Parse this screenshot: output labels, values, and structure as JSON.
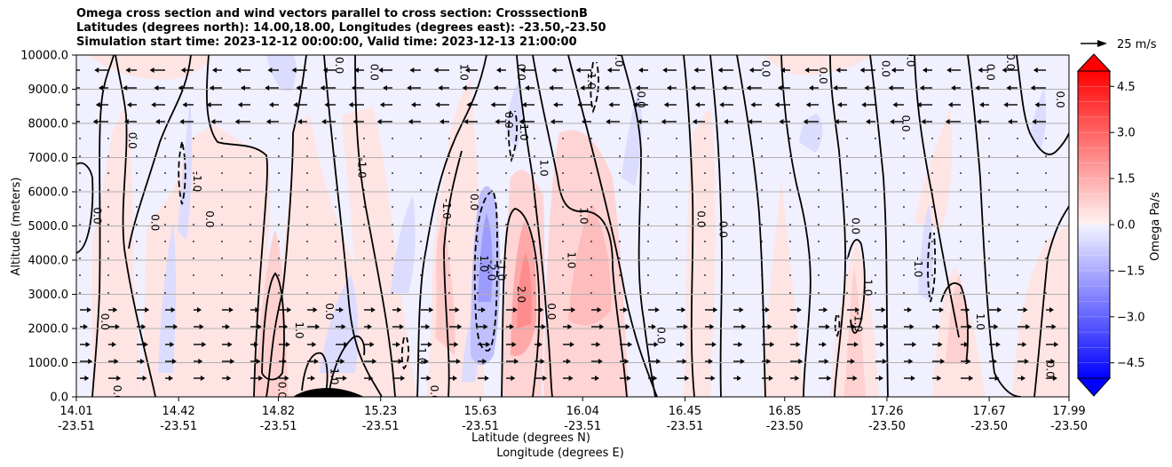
{
  "chart_data": {
    "type": "heatmap",
    "title_lines": [
      "Omega cross section and wind vectors parallel to cross section: CrosssectionB",
      "Latitudes (degrees north): 14.00,18.00, Longitudes (degrees east): -23.50,-23.50",
      "Simulation start time: 2023-12-12 00:00:00, Valid time: 2023-12-13 21:00:00"
    ],
    "ylabel": "Altitude (meters)",
    "xlabel_lat": "Latitude (degrees N)",
    "xlabel_lon": "Longitude (degrees E)",
    "ylim": [
      0,
      10000
    ],
    "y_ticks": [
      "0.0",
      "1000.0",
      "2000.0",
      "3000.0",
      "4000.0",
      "5000.0",
      "6000.0",
      "7000.0",
      "8000.0",
      "9000.0",
      "10000.0"
    ],
    "x_ticks": [
      {
        "lat": "14.01",
        "lon": "-23.51"
      },
      {
        "lat": "14.42",
        "lon": "-23.51"
      },
      {
        "lat": "14.82",
        "lon": "-23.51"
      },
      {
        "lat": "15.23",
        "lon": "-23.51"
      },
      {
        "lat": "15.63",
        "lon": "-23.51"
      },
      {
        "lat": "16.04",
        "lon": "-23.51"
      },
      {
        "lat": "16.45",
        "lon": "-23.51"
      },
      {
        "lat": "16.85",
        "lon": "-23.50"
      },
      {
        "lat": "17.26",
        "lon": "-23.50"
      },
      {
        "lat": "17.67",
        "lon": "-23.50"
      },
      {
        "lat": "17.99",
        "lon": "-23.50"
      }
    ],
    "grid": "horizontal",
    "colorbar": {
      "label": "Omega Pa/s",
      "range": [
        -5,
        5
      ],
      "tick_labels": [
        "4.5",
        "3.0",
        "1.5",
        "0.0",
        "−1.5",
        "−3.0",
        "−4.5"
      ],
      "tick_values": [
        4.5,
        3.0,
        1.5,
        0.0,
        -1.5,
        -3.0,
        -4.5
      ],
      "extend": "both"
    },
    "quiver_key": "25 m/s",
    "contour_labels": [
      {
        "text": "0.0",
        "lat": 14.08,
        "alt": 5300
      },
      {
        "text": "0.0",
        "lat": 14.11,
        "alt": 2200
      },
      {
        "text": "0.0",
        "lat": 14.16,
        "alt": 100
      },
      {
        "text": "0.0",
        "lat": 14.22,
        "alt": 7500
      },
      {
        "text": "0.0",
        "lat": 14.31,
        "alt": 5100
      },
      {
        "text": "-1.0",
        "lat": 14.48,
        "alt": 6300
      },
      {
        "text": "0.0",
        "lat": 14.53,
        "alt": 5200
      },
      {
        "text": "0.0",
        "lat": 14.82,
        "alt": 200
      },
      {
        "text": "1.0",
        "lat": 14.89,
        "alt": 1950
      },
      {
        "text": "1.0",
        "lat": 15.03,
        "alt": 600
      },
      {
        "text": "0.0",
        "lat": 15.01,
        "alt": 2500
      },
      {
        "text": "0.0",
        "lat": 15.05,
        "alt": 9700
      },
      {
        "text": "-1.0",
        "lat": 15.14,
        "alt": 6700
      },
      {
        "text": "0.0",
        "lat": 15.19,
        "alt": 9500
      },
      {
        "text": "1.0",
        "lat": 15.38,
        "alt": 1200
      },
      {
        "text": "0.0",
        "lat": 15.43,
        "alt": 100
      },
      {
        "text": "1.0",
        "lat": 15.55,
        "alt": 9500
      },
      {
        "text": "-1.0",
        "lat": 15.48,
        "alt": 5500
      },
      {
        "text": "0.0",
        "lat": 15.59,
        "alt": 5700
      },
      {
        "text": "1.0",
        "lat": 15.63,
        "alt": 3900
      },
      {
        "text": "-2.0",
        "lat": 15.66,
        "alt": 3700
      },
      {
        "text": "-1.0",
        "lat": 15.7,
        "alt": 3700
      },
      {
        "text": "2.0",
        "lat": 15.78,
        "alt": 3000
      },
      {
        "text": "0.0",
        "lat": 15.78,
        "alt": 9500
      },
      {
        "text": "-1.0",
        "lat": 15.79,
        "alt": 7800
      },
      {
        "text": "0.0",
        "lat": 15.73,
        "alt": 8100
      },
      {
        "text": "1.0",
        "lat": 15.87,
        "alt": 6700
      },
      {
        "text": "0.0",
        "lat": 15.9,
        "alt": 2500
      },
      {
        "text": "1.0",
        "lat": 15.98,
        "alt": 4000
      },
      {
        "text": "1.0",
        "lat": 16.03,
        "alt": 5300
      },
      {
        "text": "-1.0",
        "lat": 16.06,
        "alt": 9300
      },
      {
        "text": "0.0",
        "lat": 16.17,
        "alt": 9900
      },
      {
        "text": "0.0",
        "lat": 16.26,
        "alt": 8700
      },
      {
        "text": "0.0",
        "lat": 16.34,
        "alt": 1800
      },
      {
        "text": "0.0",
        "lat": 16.5,
        "alt": 5200
      },
      {
        "text": "0.0",
        "lat": 16.59,
        "alt": 4900
      },
      {
        "text": "0.0",
        "lat": 16.76,
        "alt": 9600
      },
      {
        "text": "0.0",
        "lat": 16.99,
        "alt": 9400
      },
      {
        "text": "0.0",
        "lat": 17.12,
        "alt": 5000
      },
      {
        "text": "-1.0",
        "lat": 17.13,
        "alt": 2200
      },
      {
        "text": "1.0",
        "lat": 17.17,
        "alt": 3200
      },
      {
        "text": "0.0",
        "lat": 17.24,
        "alt": 9600
      },
      {
        "text": "0.0",
        "lat": 17.34,
        "alt": 9900
      },
      {
        "text": "0.0",
        "lat": 17.32,
        "alt": 8000
      },
      {
        "text": "-1.0",
        "lat": 17.37,
        "alt": 3800
      },
      {
        "text": "1.0",
        "lat": 17.62,
        "alt": 2200
      },
      {
        "text": "0.0",
        "lat": 17.66,
        "alt": 9500
      },
      {
        "text": "0.0",
        "lat": 17.74,
        "alt": 9800
      },
      {
        "text": "0.0",
        "lat": 17.94,
        "alt": 8700
      },
      {
        "text": "0.0",
        "lat": 17.9,
        "alt": 800
      }
    ]
  }
}
